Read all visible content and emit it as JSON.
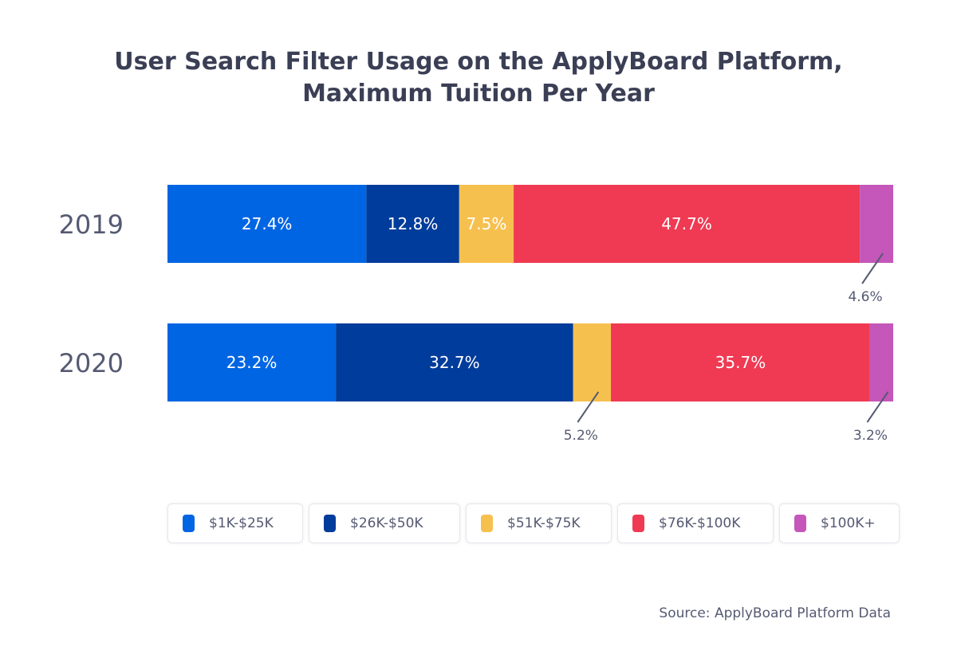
{
  "chart_data": {
    "type": "bar",
    "orientation": "horizontal",
    "stacked": true,
    "title": "User Search Filter Usage on the ApplyBoard Platform, Maximum Tuition Per Year",
    "title_lines": [
      "User Search Filter Usage on the ApplyBoard Platform,",
      "Maximum Tuition Per Year"
    ],
    "categories": [
      "2019",
      "2020"
    ],
    "series": [
      {
        "name": "$1K-$25K",
        "color": "#0065e3",
        "values": [
          27.4,
          23.2
        ],
        "labels": [
          "27.4%",
          "23.2%"
        ]
      },
      {
        "name": "$26K-$50K",
        "color": "#003c9b",
        "values": [
          12.8,
          32.7
        ],
        "labels": [
          "12.8%",
          "32.7%"
        ]
      },
      {
        "name": "$51K-$75K",
        "color": "#f6c04f",
        "values": [
          7.5,
          5.2
        ],
        "labels": [
          "7.5%",
          "5.2%"
        ]
      },
      {
        "name": "$76K-$100K",
        "color": "#f03a53",
        "values": [
          47.7,
          35.7
        ],
        "labels": [
          "47.7%",
          "35.7%"
        ]
      },
      {
        "name": "$100K+",
        "color": "#c457b9",
        "values": [
          4.6,
          3.2
        ],
        "labels": [
          "4.6%",
          "3.2%"
        ]
      }
    ],
    "xlim": [
      0,
      100
    ],
    "grid": false,
    "legend_placement": "bottom",
    "source": "Source: ApplyBoard Platform Data"
  }
}
